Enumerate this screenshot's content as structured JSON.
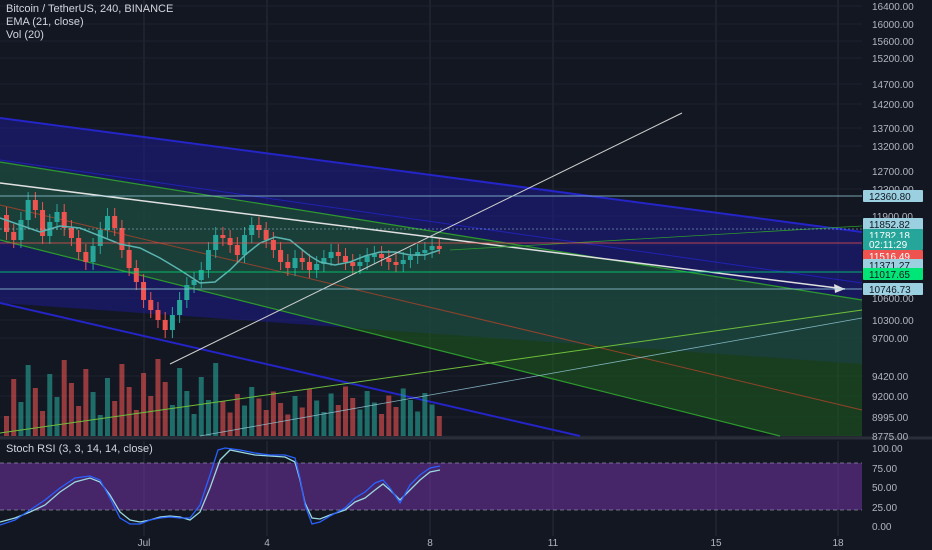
{
  "header": {
    "symbol": "Bitcoin / TetherUS, 240, BINANCE",
    "ema": "EMA (21, close)",
    "vol": "Vol (20)",
    "stoch": "Stoch RSI (3, 3, 14, 14, close)"
  },
  "colors": {
    "background": "#131722",
    "up": "#26a69a",
    "down": "#ef5350",
    "ema": "#5ab4b0",
    "channel_blue": "#2424c8",
    "channel_green": "#1f8a1f",
    "stoch_k": "#2962ff",
    "stoch_d": "#9ad8e0",
    "stoch_band": "#6a2f9a"
  },
  "chart_data": [
    {
      "type": "candlestick",
      "panel": "price",
      "price_axis": [
        "16400.00",
        "16000.00",
        "15600.00",
        "15200.00",
        "14700.00",
        "14200.00",
        "13700.00",
        "13200.00",
        "12700.00",
        "12300.00",
        "11900.00",
        "11400.00",
        "11000.00",
        "10600.00",
        "10300.00",
        "9700.00",
        "9420.00",
        "9200.00",
        "8995.00",
        "8775.00"
      ],
      "time_axis": [
        "Jul",
        "4",
        "8",
        "11",
        "15",
        "18"
      ],
      "price_tags": [
        {
          "text": "12360.80",
          "color": "#9ad0e0"
        },
        {
          "text": "11852.82",
          "color": "#9ad0e0"
        },
        {
          "text": "11782.18",
          "color": "#26a69a"
        },
        {
          "text": "02:11:29",
          "color": "#26a69a"
        },
        {
          "text": "11516.49",
          "color": "#ef5350"
        },
        {
          "text": "11371.27",
          "color": "#9ad0e0"
        },
        {
          "text": "11017.65",
          "color": "#00e676"
        },
        {
          "text": "10746.73",
          "color": "#9ad0e0"
        }
      ],
      "ylim": [
        8700,
        16500
      ]
    },
    {
      "type": "line",
      "panel": "oscillator",
      "title": "Stoch RSI (3, 3, 14, 14, close)",
      "y_axis": [
        "100.00",
        "75.00",
        "50.00",
        "25.00",
        "0.00"
      ],
      "ylim": [
        0,
        100
      ],
      "bands": [
        20,
        80
      ]
    }
  ]
}
